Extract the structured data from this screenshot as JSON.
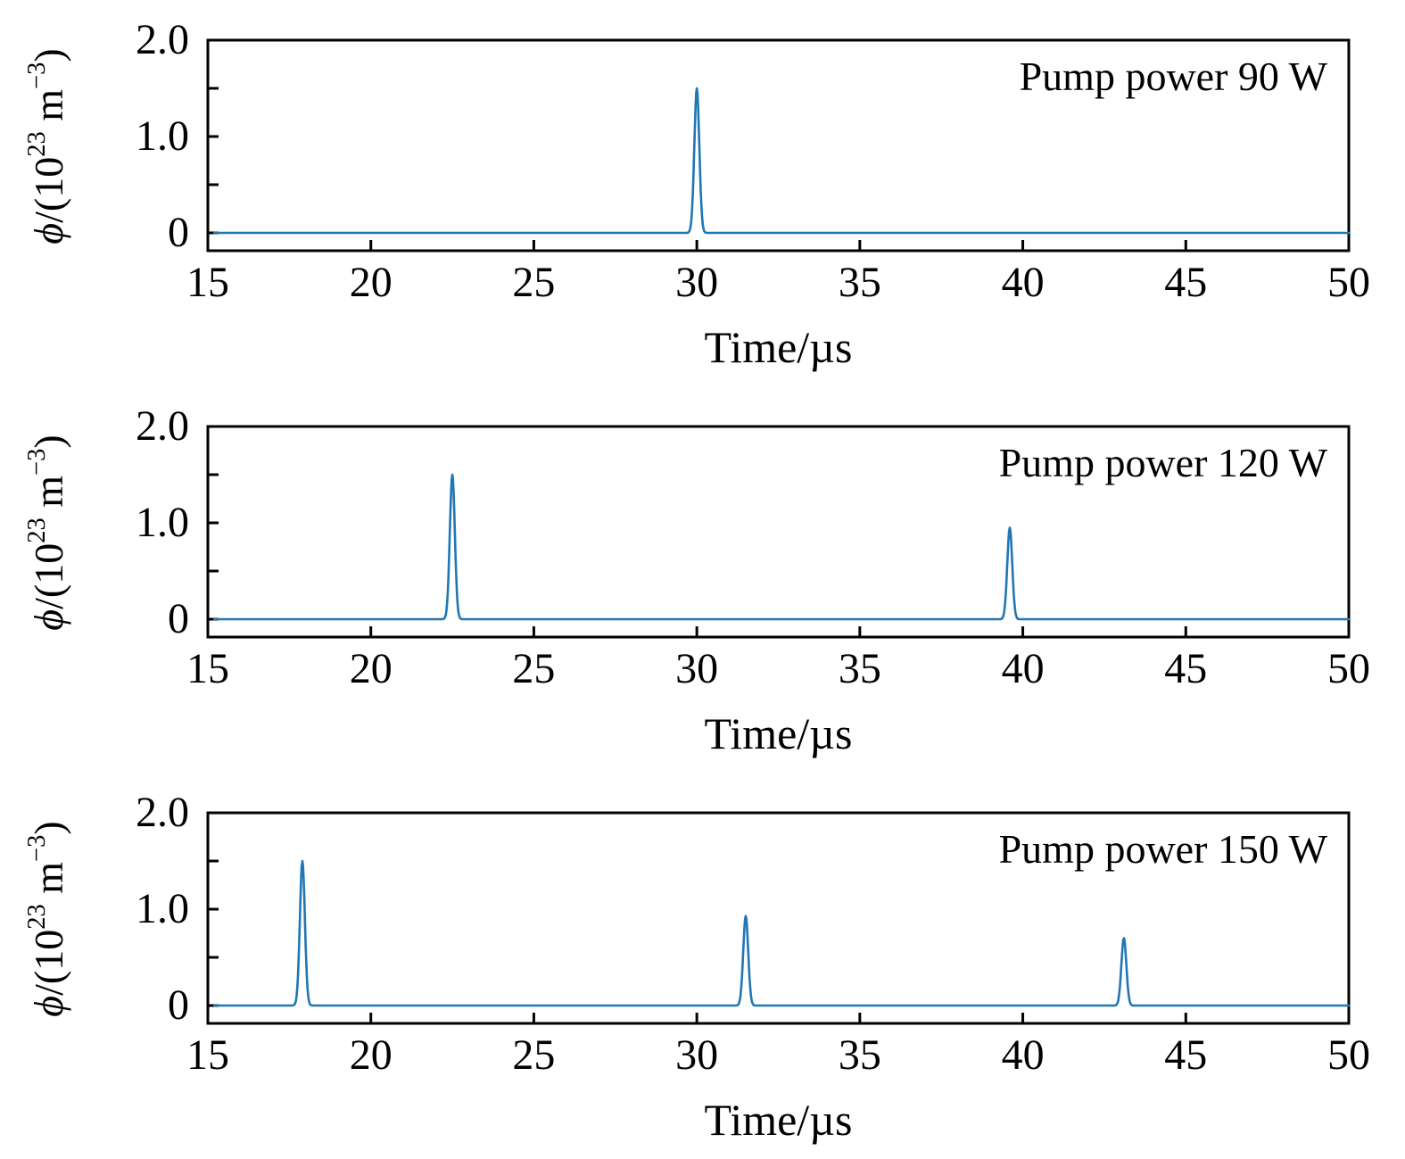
{
  "figure": {
    "xlabel": "Time/µs",
    "ylabel_text": "ϕ/(10²³ m⁻³)",
    "ylabel_parts": {
      "phi": "ϕ",
      "pre": "/(10",
      "exp1": "23",
      "mid": " m",
      "exp2": "−3",
      "post": ")"
    },
    "line_color": "#1f77b4",
    "axis_color": "#000000",
    "x_tick_labels": [
      {
        "label": "15",
        "value": 15
      },
      {
        "label": "20",
        "value": 20
      },
      {
        "label": "25",
        "value": 25
      },
      {
        "label": "30",
        "value": 30
      },
      {
        "label": "35",
        "value": 35
      },
      {
        "label": "40",
        "value": 40
      },
      {
        "label": "45",
        "value": 45
      },
      {
        "label": "50",
        "value": 50
      }
    ],
    "y_tick_labels": [
      {
        "label": "0",
        "value": 0
      },
      {
        "label": "1.0",
        "value": 1.0
      },
      {
        "label": "2.0",
        "value": 2.0
      }
    ]
  },
  "chart_data": [
    {
      "type": "line",
      "annotation": "Pump power 90 W",
      "xlabel": "Time/µs",
      "ylabel": "ϕ/(10²³ m⁻³)",
      "xlim": [
        15,
        50
      ],
      "ylim": [
        -0.2,
        2.0
      ],
      "x_ticks": [
        15,
        20,
        25,
        30,
        35,
        40,
        45,
        50
      ],
      "y_major_ticks": [
        0,
        1.0,
        2.0
      ],
      "y_minor_ticks": [
        0.5,
        1.5
      ],
      "baseline_value": 0,
      "peaks": [
        {
          "time_us": 30.0,
          "height": 1.5,
          "width_fwhm_us": 0.18
        }
      ]
    },
    {
      "type": "line",
      "annotation": "Pump power 120 W",
      "xlabel": "Time/µs",
      "ylabel": "ϕ/(10²³ m⁻³)",
      "xlim": [
        15,
        50
      ],
      "ylim": [
        -0.2,
        2.0
      ],
      "x_ticks": [
        15,
        20,
        25,
        30,
        35,
        40,
        45,
        50
      ],
      "y_major_ticks": [
        0,
        1.0,
        2.0
      ],
      "y_minor_ticks": [
        0.5,
        1.5
      ],
      "baseline_value": 0,
      "peaks": [
        {
          "time_us": 22.5,
          "height": 1.5,
          "width_fwhm_us": 0.18
        },
        {
          "time_us": 39.6,
          "height": 0.95,
          "width_fwhm_us": 0.18
        }
      ]
    },
    {
      "type": "line",
      "annotation": "Pump power 150 W",
      "xlabel": "Time/µs",
      "ylabel": "ϕ/(10²³ m⁻³)",
      "xlim": [
        15,
        50
      ],
      "ylim": [
        -0.2,
        2.0
      ],
      "x_ticks": [
        15,
        20,
        25,
        30,
        35,
        40,
        45,
        50
      ],
      "y_major_ticks": [
        0,
        1.0,
        2.0
      ],
      "y_minor_ticks": [
        0.5,
        1.5
      ],
      "baseline_value": 0,
      "peaks": [
        {
          "time_us": 17.9,
          "height": 1.5,
          "width_fwhm_us": 0.18
        },
        {
          "time_us": 31.5,
          "height": 0.93,
          "width_fwhm_us": 0.18
        },
        {
          "time_us": 43.1,
          "height": 0.7,
          "width_fwhm_us": 0.18
        }
      ]
    }
  ]
}
